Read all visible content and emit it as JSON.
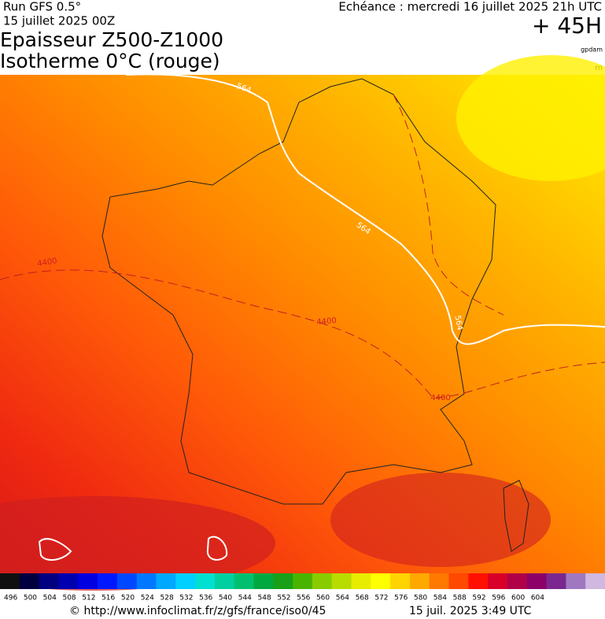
{
  "header": {
    "run": "Run GFS 0.5°",
    "run_date": "15 juillet 2025 00Z",
    "valid": "Echéance : mercredi 16 juillet 2025 21h UTC",
    "lead": "+ 45H",
    "title_line1": "Epaisseur Z500-Z1000",
    "title_line2": "Isotherme 0°C (rouge)",
    "unit_thickness": "gpdam",
    "unit_iso": "m"
  },
  "map": {
    "contour_labels": [
      {
        "text": "564",
        "kind": "thickness"
      },
      {
        "text": "564",
        "kind": "thickness"
      },
      {
        "text": "564",
        "kind": "thickness"
      },
      {
        "text": "4400",
        "kind": "iso0"
      },
      {
        "text": "4400",
        "kind": "iso0"
      },
      {
        "text": "4400",
        "kind": "iso0"
      }
    ]
  },
  "colorbar": {
    "colors": [
      "#101010",
      "#000040",
      "#000080",
      "#0000b0",
      "#0000e0",
      "#0018ff",
      "#0048ff",
      "#0078ff",
      "#00a8ff",
      "#00d0ff",
      "#00e0d0",
      "#00d0a0",
      "#00c070",
      "#00a840",
      "#18a018",
      "#48b400",
      "#88cc00",
      "#b8dc00",
      "#e8ec00",
      "#ffff00",
      "#ffd400",
      "#ffa800",
      "#ff7800",
      "#ff4800",
      "#ff1000",
      "#d80028",
      "#b00048",
      "#8c0068",
      "#7a2890",
      "#a078c0",
      "#d0b8e0"
    ],
    "ticks": [
      496,
      500,
      504,
      508,
      512,
      516,
      520,
      524,
      528,
      532,
      536,
      540,
      544,
      548,
      552,
      556,
      560,
      564,
      568,
      572,
      576,
      580,
      584,
      588,
      592,
      596,
      600,
      604
    ]
  },
  "footer": {
    "url": "© http://www.infoclimat.fr/z/gfs/france/iso0/45",
    "generated": "15 juil. 2025  3:49 UTC"
  }
}
